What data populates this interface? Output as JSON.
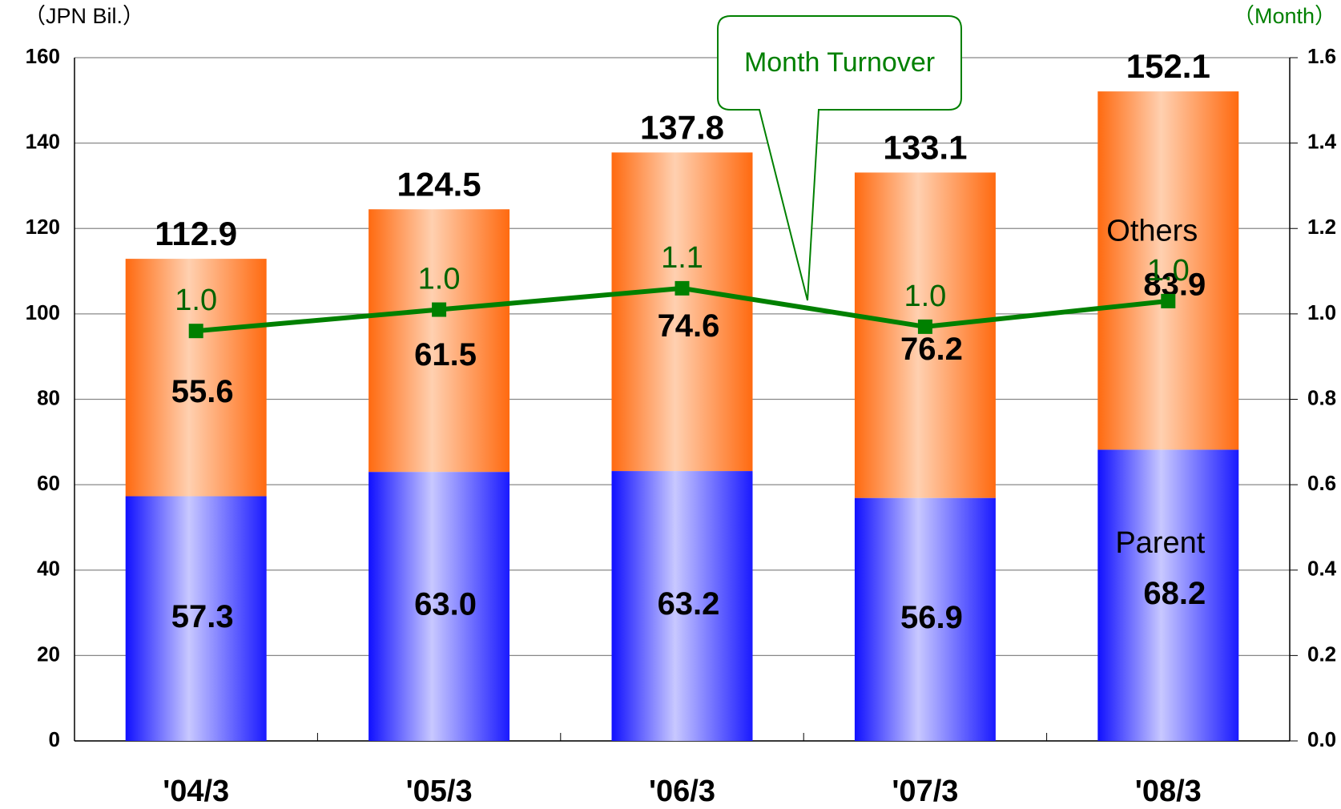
{
  "chart_data": {
    "type": "stacked_bar_line",
    "y_label": "（JPN Bil.）",
    "y2_label": "（Month）",
    "categories": [
      "'04/3",
      "'05/3",
      "'06/3",
      "'07/3",
      "'08/3"
    ],
    "series": [
      {
        "name": "Parent",
        "color": "#1a1aff",
        "values": [
          57.3,
          63.0,
          63.2,
          56.9,
          68.2
        ],
        "value_labels": [
          "57.3",
          "63.0",
          "63.2",
          "56.9",
          "68.2"
        ]
      },
      {
        "name": "Others",
        "color": "#ff6a10",
        "values": [
          55.6,
          61.5,
          74.6,
          76.2,
          83.9
        ]
      },
      {
        "name": "Month Turnover",
        "color": "#008000",
        "axis": "y2",
        "values": [
          0.96,
          1.01,
          1.06,
          0.97,
          1.03
        ],
        "value_labels": [
          "1.0",
          "1.0",
          "1.1",
          "1.0",
          "1.0"
        ]
      }
    ],
    "totals": [
      112.9,
      124.5,
      137.8,
      133.1,
      152.1
    ],
    "ylim": [
      0,
      160
    ],
    "yticks": [
      0,
      20,
      40,
      60,
      80,
      100,
      120,
      140,
      160
    ],
    "y2lim": [
      0,
      1.6
    ],
    "y2ticks": [
      {
        "value": 0,
        "label": "0.0"
      },
      0.2,
      0.4,
      0.6,
      0.8,
      {
        "value": 1,
        "label": "1.0"
      },
      1.2,
      1.4,
      1.6
    ],
    "grid": true
  }
}
